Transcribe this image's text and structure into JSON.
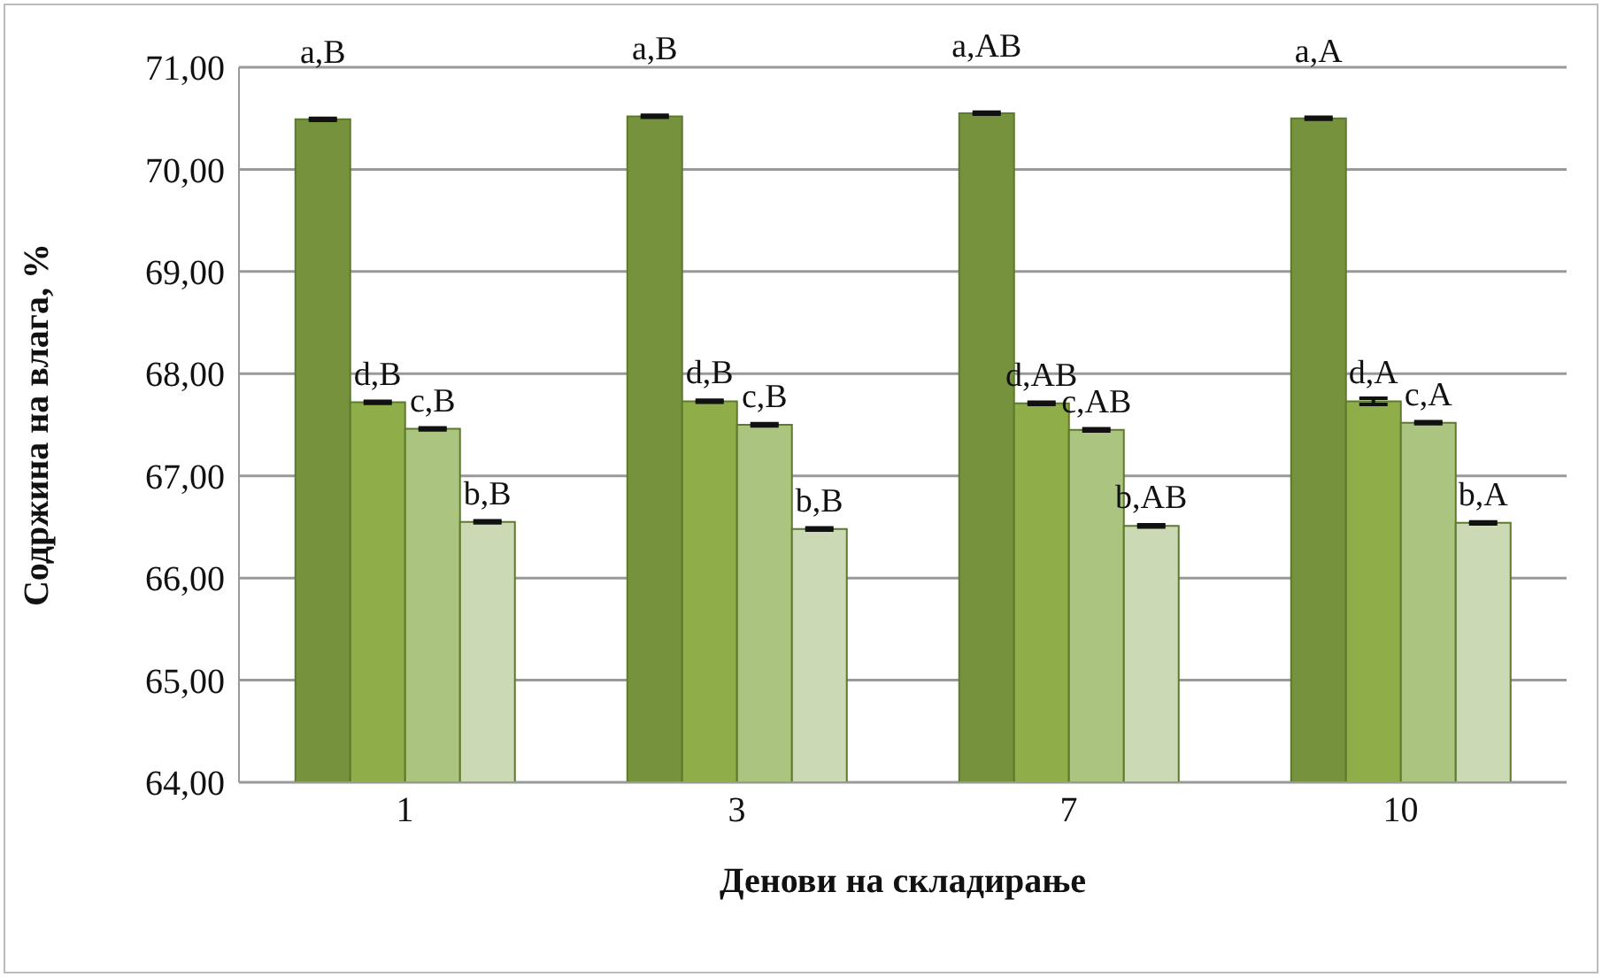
{
  "chart_data": {
    "type": "bar",
    "xlabel": "Денови на складирање",
    "ylabel": "Содржина на влага, %",
    "categories": [
      "1",
      "3",
      "7",
      "10"
    ],
    "series": [
      {
        "color": "#76923c",
        "values": [
          70.49,
          70.52,
          70.55,
          70.5
        ],
        "errors": [
          0.01,
          0.01,
          0.01,
          0.01
        ],
        "value_labels": [
          "a,B",
          "a,B",
          "a,AB",
          "a,A"
        ]
      },
      {
        "color": "#8fad48",
        "values": [
          67.72,
          67.73,
          67.71,
          67.73
        ],
        "errors": [
          0.01,
          0.01,
          0.01,
          0.03
        ],
        "value_labels": [
          "d,B",
          "d,B",
          "d,AB",
          "d,A"
        ]
      },
      {
        "color": "#abc47f",
        "values": [
          67.46,
          67.5,
          67.45,
          67.52
        ],
        "errors": [
          0.01,
          0.01,
          0.01,
          0.01
        ],
        "value_labels": [
          "c,B",
          "c,B",
          "c,AB",
          "c,A"
        ]
      },
      {
        "color": "#cbdab4",
        "values": [
          66.55,
          66.48,
          66.51,
          66.54
        ],
        "errors": [
          0.01,
          0.01,
          0.01,
          0.01
        ],
        "value_labels": [
          "b,B",
          "b,B",
          "b,AB",
          "b,A"
        ]
      }
    ],
    "ylim": [
      64,
      71
    ],
    "yticks": [
      {
        "value": 64,
        "label": "64,00"
      },
      {
        "value": 65,
        "label": "65,00"
      },
      {
        "value": 66,
        "label": "66,00"
      },
      {
        "value": 67,
        "label": "67,00"
      },
      {
        "value": 68,
        "label": "68,00"
      },
      {
        "value": 69,
        "label": "69,00"
      },
      {
        "value": 70,
        "label": "70,00"
      },
      {
        "value": 71,
        "label": "71,00"
      }
    ],
    "grid": "y",
    "legend": false
  }
}
